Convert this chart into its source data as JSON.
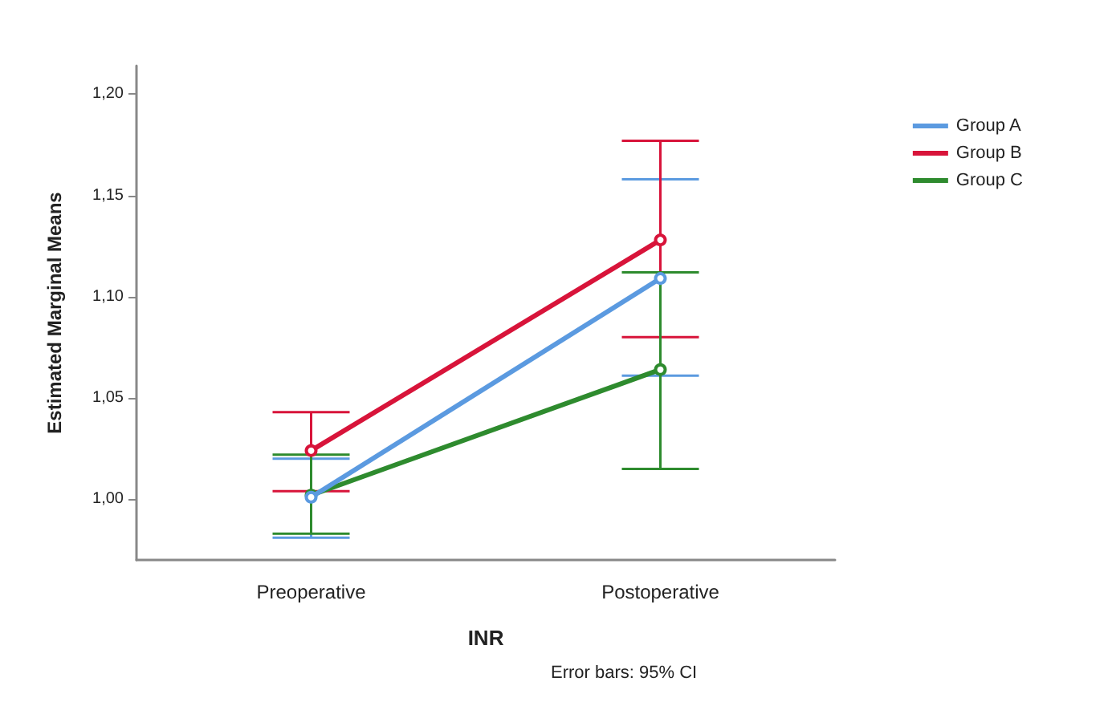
{
  "chart_data": {
    "type": "line",
    "xlabel": "INR",
    "ylabel": "Estimated Marginal Means",
    "categories": [
      "Preoperative",
      "Postoperative"
    ],
    "series": [
      {
        "name": "Group A",
        "color": "#5b9ae0",
        "values": [
          1.001,
          1.109
        ],
        "errors": [
          [
            0.981,
            1.02
          ],
          [
            1.061,
            1.158
          ]
        ]
      },
      {
        "name": "Group B",
        "color": "#d8143a",
        "values": [
          1.024,
          1.128
        ],
        "errors": [
          [
            1.004,
            1.043
          ],
          [
            1.08,
            1.177
          ]
        ]
      },
      {
        "name": "Group C",
        "color": "#2e8b2e",
        "values": [
          1.002,
          1.064
        ],
        "errors": [
          [
            0.983,
            1.022
          ],
          [
            1.015,
            1.112
          ]
        ]
      }
    ],
    "ylim": [
      0.97,
      1.214
    ],
    "yticks": [
      {
        "value": 1.0,
        "label": "1,00"
      },
      {
        "value": 1.05,
        "label": "1,05"
      },
      {
        "value": 1.1,
        "label": "1,10"
      },
      {
        "value": 1.15,
        "label": "1,15"
      },
      {
        "value": 1.2,
        "label": "1,20"
      }
    ],
    "annotations": [
      "Error bars: 95% CI"
    ],
    "legend": "top right",
    "grid": false,
    "marker": "circle",
    "line_style": "solid"
  }
}
